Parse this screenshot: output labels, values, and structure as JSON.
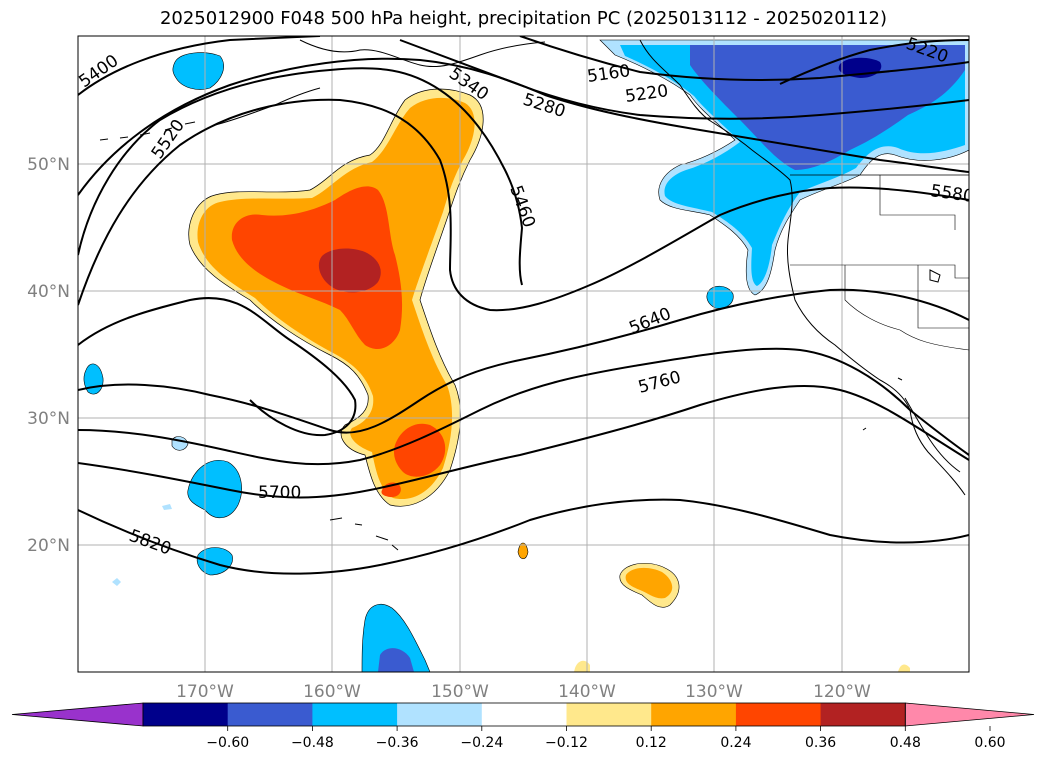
{
  "title": "2025012900 F048 500 hPa height, precipitation PC (2025013112 - 2025020112)",
  "lat_labels": [
    "50°N",
    "40°N",
    "30°N",
    "20°N"
  ],
  "lon_labels": [
    "170°W",
    "160°W",
    "150°W",
    "140°W",
    "130°W",
    "120°W"
  ],
  "contour_labels": [
    "5400",
    "5520",
    "5340",
    "5280",
    "5160",
    "5220",
    "5220",
    "5460",
    "5580",
    "5640",
    "5760",
    "5700",
    "5820"
  ],
  "colorbar": {
    "ticks": [
      "−0.60",
      "−0.48",
      "−0.36",
      "−0.24",
      "−0.12",
      "0.12",
      "0.24",
      "0.36",
      "0.48",
      "0.60"
    ],
    "colors": [
      "#9932cc",
      "#00008b",
      "#3a5bd0",
      "#00bfff",
      "#b0e2ff",
      "#ffffff",
      "#ffe88c",
      "#ffa500",
      "#ff4500",
      "#b22222",
      "#ff88aa"
    ]
  },
  "colors": {
    "neg_strong": "#3a5bd0",
    "neg_mid": "#00bfff",
    "neg_weak": "#b0e2ff",
    "neg_max": "#00008b",
    "pos_weak": "#ffe88c",
    "pos_mid": "#ffa500",
    "pos_strong": "#ff4500",
    "pos_max": "#b22222"
  }
}
